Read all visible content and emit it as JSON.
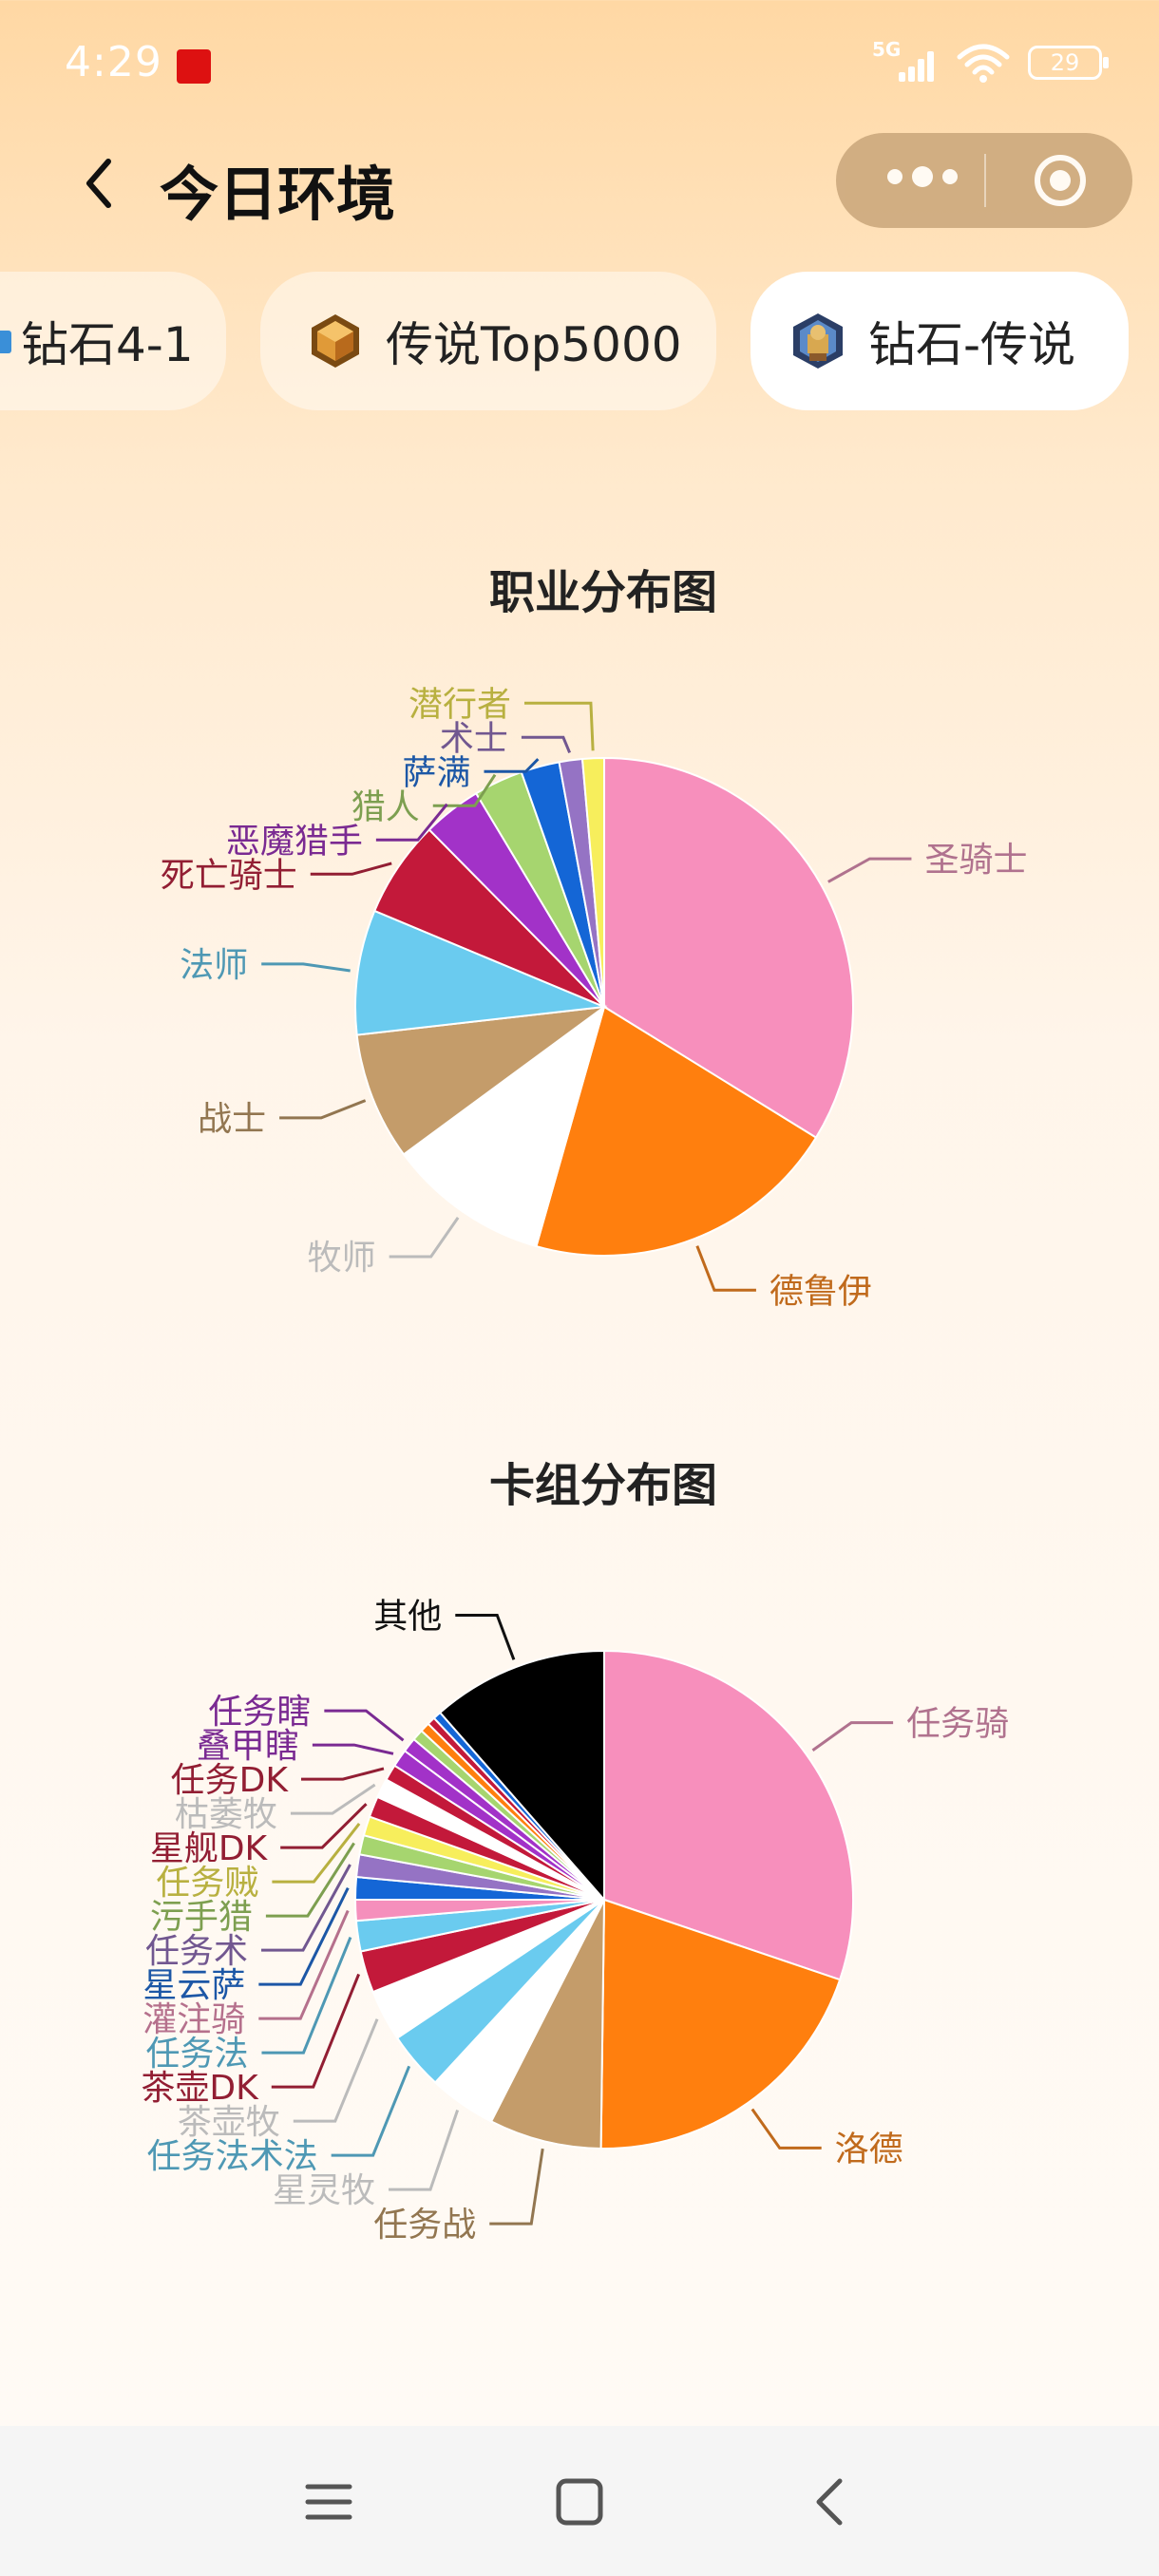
{
  "status": {
    "time": "4:29",
    "network": "5G",
    "battery": "29"
  },
  "header": {
    "title": "今日环境"
  },
  "tabs": [
    {
      "label": "钻石4-1",
      "icon": "rank-icon",
      "active": false
    },
    {
      "label": "传说Top5000",
      "icon": "legend-hexagon-icon",
      "active": false
    },
    {
      "label": "钻石-传说",
      "icon": "diamond-legend-icon",
      "active": true
    }
  ],
  "chart_data": [
    {
      "type": "pie",
      "title": "职业分布图",
      "categories": [
        "圣骑士",
        "德鲁伊",
        "牧师",
        "战士",
        "法师",
        "死亡骑士",
        "恶魔猎手",
        "猎人",
        "萨满",
        "术士",
        "潜行者"
      ],
      "values": [
        33.8,
        20.6,
        10.5,
        8.3,
        8.1,
        6.3,
        3.8,
        3.2,
        2.5,
        1.5,
        1.4
      ],
      "colors": [
        "#F78FBC",
        "#FF7F0E",
        "#FFFFFF",
        "#C49C6A",
        "#6ACBEF",
        "#C3193A",
        "#A232C8",
        "#A6D56F",
        "#1466D6",
        "#9573C4",
        "#F7EE5C"
      ],
      "label_colors": [
        "#B0728E",
        "#C06A1C",
        "#BBBBBB",
        "#927650",
        "#4E98B4",
        "#921E33",
        "#7A2A92",
        "#7D9F50",
        "#1C57A6",
        "#715790",
        "#B8B040"
      ]
    },
    {
      "type": "pie",
      "title": "卡组分布图",
      "categories": [
        "任务骑",
        "洛德",
        "任务战",
        "星灵牧",
        "任务法术法",
        "茶壶牧",
        "茶壶DK",
        "任务法",
        "灌注骑",
        "星云萨",
        "任务术",
        "污手猎",
        "任务贼",
        "星舰DK",
        "枯萎牧",
        "任务DK",
        "叠甲瞎",
        "任务瞎",
        "",
        "",
        "",
        "",
        "其他"
      ],
      "values": [
        29.0,
        19.2,
        7.0,
        4.2,
        3.6,
        3.2,
        2.6,
        1.9,
        1.3,
        1.4,
        1.4,
        1.2,
        1.2,
        1.3,
        1.2,
        1.0,
        1.1,
        0.9,
        0.7,
        0.6,
        0.5,
        0.5,
        11.0
      ],
      "colors": [
        "#F78FBC",
        "#FF7F0E",
        "#C49C6A",
        "#FFFFFF",
        "#6ACBEF",
        "#FFFFFF",
        "#C3193A",
        "#6ACBEF",
        "#F58FBC",
        "#1466D6",
        "#9573C4",
        "#A6D56F",
        "#F7EE5C",
        "#C3193A",
        "#FFFFFF",
        "#C3193A",
        "#A232C8",
        "#A232C8",
        "#A6D56F",
        "#FF7F0E",
        "#C3193A",
        "#1466D6",
        "#000000"
      ],
      "label_colors": [
        "#B0728E",
        "#C06A1C",
        "#927650",
        "#BBBBBB",
        "#4E98B4",
        "#BBBBBB",
        "#921E33",
        "#4E98B4",
        "#B5708C",
        "#1C57A6",
        "#715790",
        "#7D9F50",
        "#B8B040",
        "#921E33",
        "#BBBBBB",
        "#921E33",
        "#7A2A92",
        "#7A2A92",
        "#7D9F50",
        "#C06A1C",
        "#921E33",
        "#1C57A6",
        "#111111"
      ]
    }
  ]
}
